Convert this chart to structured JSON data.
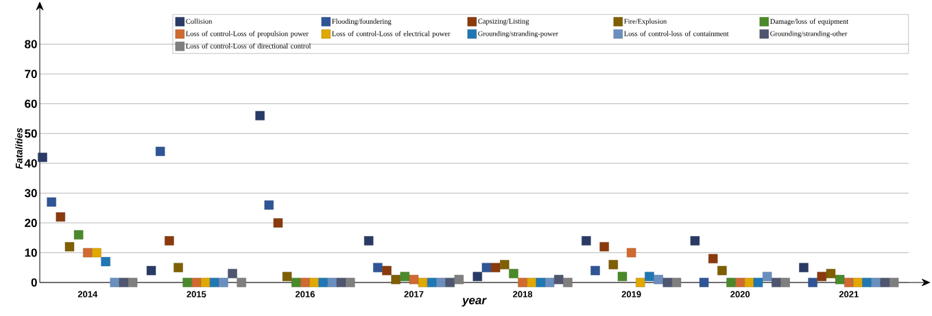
{
  "chart_data": {
    "type": "scatter",
    "xlabel": "year",
    "ylabel": "Fatalities",
    "categories": [
      "2014",
      "2015",
      "2016",
      "2017",
      "2018",
      "2019",
      "2020",
      "2021"
    ],
    "series": [
      {
        "name": "Collision",
        "color": "#2a3a66",
        "values": [
          42,
          4,
          56,
          14,
          2,
          14,
          14,
          5
        ]
      },
      {
        "name": "Flooding/foundering",
        "color": "#2f5597",
        "values": [
          27,
          44,
          26,
          5,
          5,
          4,
          0,
          0
        ]
      },
      {
        "name": "Capsizing/Listing",
        "color": "#8a3a0c",
        "values": [
          22,
          14,
          20,
          4,
          5,
          12,
          8,
          2
        ]
      },
      {
        "name": "Fire/Explosion",
        "color": "#7f5f00",
        "values": [
          12,
          5,
          2,
          1,
          6,
          6,
          4,
          3
        ]
      },
      {
        "name": "Damage/loss of equipment",
        "color": "#4a8a2a",
        "values": [
          16,
          0,
          0,
          2,
          3,
          2,
          0,
          1
        ]
      },
      {
        "name": "Loss of control-Loss of propulsion power",
        "color": "#d06a30",
        "values": [
          10,
          0,
          0,
          1,
          0,
          10,
          0,
          0
        ]
      },
      {
        "name": "Loss of control-Loss of electrical power",
        "color": "#e0a800",
        "values": [
          10,
          0,
          0,
          0,
          0,
          0,
          0,
          0
        ]
      },
      {
        "name": "Grounding/stranding-power",
        "color": "#1f78b4",
        "values": [
          7,
          0,
          0,
          0,
          0,
          2,
          0,
          0
        ]
      },
      {
        "name": "Loss of control-loss of containment",
        "color": "#6a8fbf",
        "values": [
          0,
          0,
          0,
          0,
          0,
          1,
          2,
          0
        ]
      },
      {
        "name": "Grounding/stranding-other",
        "color": "#4f5670",
        "values": [
          0,
          3,
          0,
          0,
          1,
          0,
          0,
          0
        ]
      },
      {
        "name": "Loss of control-Loss of directional control",
        "color": "#7f7f7f",
        "values": [
          0,
          0,
          0,
          1,
          0,
          0,
          0,
          0
        ]
      }
    ],
    "ylim": [
      0,
      90
    ],
    "yticks": [
      0,
      10,
      20,
      30,
      40,
      50,
      60,
      70,
      80
    ],
    "grid": "y",
    "legend": "top right",
    "marker": "square"
  }
}
